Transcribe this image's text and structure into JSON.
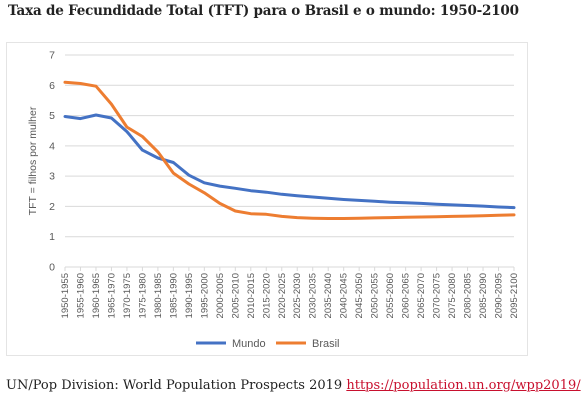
{
  "page": {
    "title": "Taxa de Fecundidade Total (TFT) para o Brasil e o mundo: 1950-2100",
    "source_text": "UN/Pop Division: World Population Prospects 2019",
    "source_link": "https://population.un.org/wpp2019/"
  },
  "colors": {
    "mundo": "#4472c4",
    "brasil": "#ed7d31",
    "grid": "#d9d9d9",
    "axis_text": "#595959"
  },
  "chart_data": {
    "type": "line",
    "title": "",
    "xlabel": "",
    "ylabel": "TFT = filhos por mulher",
    "ylim": [
      0,
      7
    ],
    "yticks": [
      "0",
      "1",
      "2",
      "3",
      "4",
      "5",
      "6",
      "7"
    ],
    "grid": "horizontal",
    "legend_position": "bottom",
    "categories": [
      "1950-1955",
      "1955-1960",
      "1960-1965",
      "1965-1970",
      "1970-1975",
      "1975-1980",
      "1980-1985",
      "1985-1990",
      "1990-1995",
      "1995-2000",
      "2000-2005",
      "2005-2010",
      "2010-2015",
      "2015-2020",
      "2020-2025",
      "2025-2030",
      "2030-2035",
      "2035-2040",
      "2040-2045",
      "2045-2050",
      "2050-2055",
      "2055-2060",
      "2060-2065",
      "2065-2070",
      "2070-2075",
      "2075-2080",
      "2080-2085",
      "2085-2090",
      "2090-2095",
      "2095-2100"
    ],
    "series": [
      {
        "name": "Mundo",
        "color": "#4472c4",
        "values": [
          4.97,
          4.9,
          5.02,
          4.92,
          4.47,
          3.86,
          3.6,
          3.45,
          3.03,
          2.78,
          2.67,
          2.6,
          2.52,
          2.47,
          2.4,
          2.35,
          2.31,
          2.27,
          2.23,
          2.2,
          2.17,
          2.14,
          2.12,
          2.1,
          2.07,
          2.05,
          2.03,
          2.01,
          1.98,
          1.96
        ]
      },
      {
        "name": "Brasil",
        "color": "#ed7d31",
        "values": [
          6.1,
          6.06,
          5.97,
          5.38,
          4.62,
          4.31,
          3.8,
          3.1,
          2.74,
          2.45,
          2.1,
          1.85,
          1.76,
          1.74,
          1.67,
          1.63,
          1.61,
          1.6,
          1.6,
          1.61,
          1.62,
          1.63,
          1.64,
          1.65,
          1.66,
          1.67,
          1.68,
          1.69,
          1.71,
          1.72
        ]
      }
    ]
  }
}
